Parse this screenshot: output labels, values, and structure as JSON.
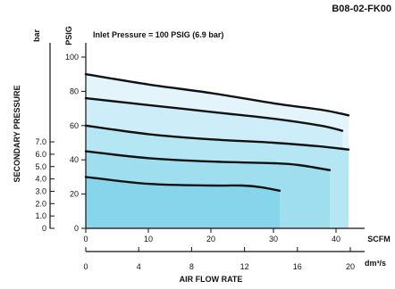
{
  "chart_data": {
    "type": "area",
    "code": "B08-02-FK00",
    "note": "Inlet Pressure = 100 PSIG (6.9 bar)",
    "ylabel": "SECONDARY PRESSURE",
    "xlabel": "AIR FLOW RATE",
    "y_units": {
      "psig": "PSIG",
      "bar": "bar"
    },
    "x_units": {
      "scfm": "SCFM",
      "dm3s": "dm³/s"
    },
    "psig_ticks": [
      "0",
      "20",
      "40",
      "60",
      "80",
      "100"
    ],
    "bar_ticks": [
      "0",
      "1.0",
      "2.0",
      "3.0",
      "4.0",
      "5.0",
      "6.0",
      "7.0"
    ],
    "scfm_ticks": [
      "0",
      "10",
      "20",
      "30",
      "40"
    ],
    "dm3s_ticks": [
      "0",
      "4",
      "8",
      "12",
      "16",
      "20"
    ],
    "ylim_psig": [
      0,
      105
    ],
    "xlim_scfm": [
      0,
      43
    ],
    "series": [
      {
        "x": [
          0,
          10,
          20,
          30,
          38,
          42
        ],
        "y": [
          90,
          84,
          79,
          73,
          69,
          66
        ]
      },
      {
        "x": [
          0,
          10,
          20,
          30,
          37.5,
          41
        ],
        "y": [
          76,
          72,
          68,
          64,
          60,
          57
        ]
      },
      {
        "x": [
          0,
          10,
          20,
          30,
          37,
          42
        ],
        "y": [
          60,
          55,
          52,
          50,
          48,
          46
        ]
      },
      {
        "x": [
          0,
          10,
          20,
          30,
          34,
          39
        ],
        "y": [
          45,
          41,
          39,
          38,
          37,
          34
        ]
      },
      {
        "x": [
          0,
          10,
          20,
          25,
          28,
          31
        ],
        "y": [
          30,
          26,
          25,
          25,
          24,
          22
        ]
      }
    ],
    "fill_colors": [
      "#e3f5fb",
      "#cdeef8",
      "#b5e6f4",
      "#9edeef",
      "#86d5eb"
    ]
  }
}
